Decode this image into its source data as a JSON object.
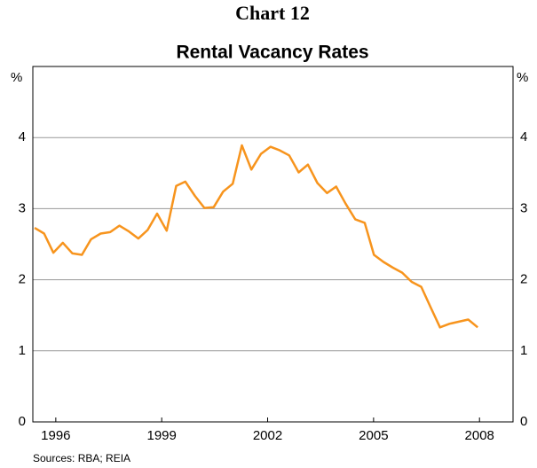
{
  "chart_data": {
    "type": "line",
    "title": "Chart 12",
    "subtitle": "Rental Vacancy Rates",
    "y_label": "%",
    "source": "Sources: RBA; REIA",
    "x": [
      1995.4,
      1995.67,
      1995.93,
      1996.2,
      1996.47,
      1996.74,
      1997.0,
      1997.27,
      1997.54,
      1997.8,
      1998.07,
      1998.34,
      1998.6,
      1998.87,
      1999.14,
      1999.41,
      1999.67,
      1999.94,
      2000.21,
      2000.47,
      2000.74,
      2001.01,
      2001.27,
      2001.54,
      2001.81,
      2002.08,
      2002.34,
      2002.61,
      2002.88,
      2003.14,
      2003.41,
      2003.68,
      2003.94,
      2004.21,
      2004.48,
      2004.75,
      2005.01,
      2005.28,
      2005.55,
      2005.81,
      2006.08,
      2006.35,
      2006.61,
      2006.88,
      2007.15,
      2007.42,
      2007.68,
      2007.95
    ],
    "series": [
      {
        "color": "#f7941d",
        "values": [
          2.73,
          2.65,
          2.38,
          2.52,
          2.37,
          2.35,
          2.57,
          2.65,
          2.67,
          2.76,
          2.68,
          2.58,
          2.7,
          2.93,
          2.69,
          3.32,
          3.38,
          3.18,
          3.01,
          3.02,
          3.24,
          3.35,
          3.89,
          3.55,
          3.77,
          3.87,
          3.82,
          3.75,
          3.51,
          3.62,
          3.36,
          3.22,
          3.31,
          3.07,
          2.85,
          2.8,
          2.35,
          2.25,
          2.17,
          2.1,
          1.97,
          1.9,
          1.62,
          1.33,
          1.38,
          1.41,
          1.44,
          1.33
        ]
      }
    ],
    "xlim": [
      1995.35,
      2008.95
    ],
    "xticks": [
      1996,
      1999,
      2002,
      2005,
      2008
    ],
    "ylim": [
      0,
      5
    ],
    "yticks": [
      0,
      1,
      2,
      3,
      4
    ],
    "grid": true
  }
}
